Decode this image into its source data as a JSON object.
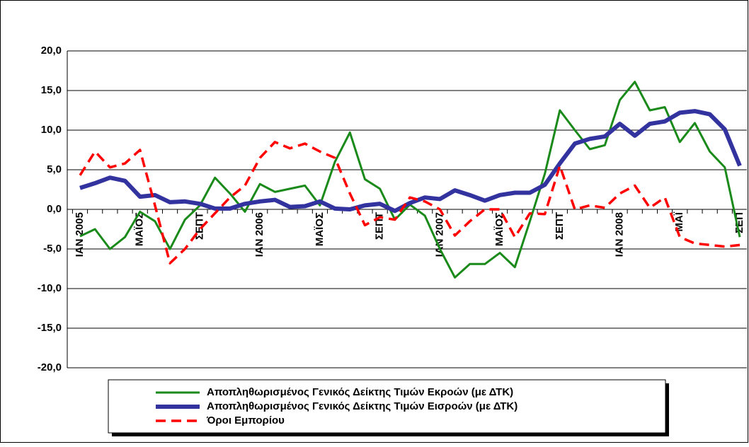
{
  "chart_data": {
    "type": "line",
    "categories": [
      "ΙΑΝ 2005",
      null,
      null,
      null,
      "ΜΑΪΟΣ",
      null,
      null,
      null,
      "ΣΕΠΤ",
      null,
      null,
      null,
      "ΙΑΝ 2006",
      null,
      null,
      null,
      "ΜΑΪΟΣ",
      null,
      null,
      null,
      "ΣΕΠΤ",
      null,
      null,
      null,
      "ΙΑΝ 2007",
      null,
      null,
      null,
      "ΜΑΪΟΣ",
      null,
      null,
      null,
      "ΣΕΠΤ",
      null,
      null,
      null,
      "ΙΑΝ 2008",
      null,
      null,
      null,
      "ΜΑΪ",
      null,
      null,
      null,
      "ΣΕΠ"
    ],
    "series": [
      {
        "name": "Αποπληθωρισμένος Γενικός Δείκτης Τιμών Εκροών (με ΔΤΚ)",
        "color": "#1a8a1a",
        "values": [
          -3.4,
          -2.5,
          -5.0,
          -3.5,
          -0.3,
          -1.5,
          -5.0,
          -1.3,
          0.5,
          4.0,
          2.0,
          -0.3,
          3.2,
          2.2,
          2.6,
          3.0,
          0.5,
          6.0,
          9.7,
          3.8,
          2.6,
          -1.3,
          0.6,
          -0.8,
          -5.0,
          -8.6,
          -6.9,
          -6.9,
          -5.5,
          -7.3,
          -1.5,
          4.5,
          12.5,
          10.0,
          7.6,
          8.1,
          13.8,
          16.1,
          12.5,
          12.9,
          8.5,
          10.9,
          7.3,
          5.3,
          -3.5
        ]
      },
      {
        "name": "Αποπληθωρισμένος Γενικός Δείκτης Τιμών Εισροών (με ΔΤΚ)",
        "color": "#3333a0",
        "values": [
          2.7,
          3.3,
          4.0,
          3.6,
          1.6,
          1.8,
          0.9,
          1.0,
          0.7,
          0.1,
          0.1,
          0.7,
          1.0,
          1.2,
          0.3,
          0.4,
          1.0,
          0.1,
          0.0,
          0.5,
          0.7,
          -0.2,
          0.8,
          1.5,
          1.3,
          2.4,
          1.8,
          1.1,
          1.8,
          2.1,
          2.1,
          3.1,
          5.8,
          8.3,
          8.9,
          9.2,
          10.8,
          9.3,
          10.8,
          11.1,
          12.2,
          12.4,
          12.0,
          10.1,
          5.5
        ]
      },
      {
        "name": "Όροι Εμπορίου",
        "color": "#ff0000",
        "values": [
          4.3,
          7.3,
          5.3,
          5.8,
          7.5,
          0.5,
          -6.8,
          -5.0,
          -2.5,
          -0.5,
          1.5,
          3.0,
          6.5,
          8.5,
          7.7,
          8.3,
          7.3,
          6.5,
          2.0,
          -2.0,
          -1.0,
          -1.3,
          1.5,
          1.0,
          0.0,
          -3.3,
          -1.5,
          0.0,
          0.0,
          -3.5,
          -0.5,
          -0.6,
          5.5,
          0.0,
          0.5,
          0.2,
          2.0,
          3.0,
          0.2,
          1.5,
          -3.5,
          -4.3,
          -4.5,
          -4.7,
          -4.5
        ]
      }
    ],
    "ylim": [
      -20,
      20
    ],
    "yticks": [
      {
        "value": -20,
        "label": "-20,0"
      },
      {
        "value": -15,
        "label": "-15,0"
      },
      {
        "value": -10,
        "label": "-10,0"
      },
      {
        "value": -5,
        "label": "-5,0"
      },
      {
        "value": 0,
        "label": "0,0"
      },
      {
        "value": 5,
        "label": "5,0"
      },
      {
        "value": 10,
        "label": "10,0"
      },
      {
        "value": 15,
        "label": "15,0"
      },
      {
        "value": 20,
        "label": "20,0"
      }
    ],
    "grid": true
  }
}
